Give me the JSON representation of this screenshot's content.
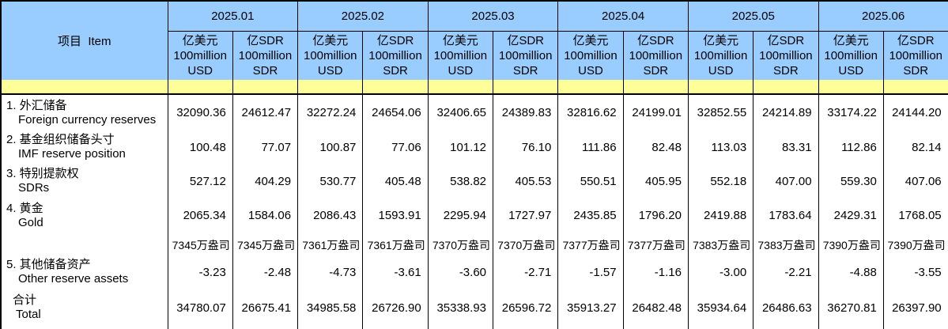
{
  "chart_data": {
    "type": "table",
    "item_header": "项目  Item",
    "months": [
      "2025.01",
      "2025.02",
      "2025.03",
      "2025.04",
      "2025.05",
      "2025.06"
    ],
    "unit_headers": {
      "usd": [
        "亿美元",
        "100million",
        "USD"
      ],
      "sdr": [
        "亿SDR",
        "100million",
        "SDR"
      ]
    },
    "rows": [
      {
        "label_cn": "1. 外汇储备",
        "label_en": "Foreign currency reserves",
        "values": [
          "32090.36",
          "24612.47",
          "32272.24",
          "24654.06",
          "32406.65",
          "24389.83",
          "32816.62",
          "24199.01",
          "32852.55",
          "24214.89",
          "33174.22",
          "24144.20"
        ]
      },
      {
        "label_cn": "2. 基金组织储备头寸",
        "label_en": "IMF reserve position",
        "values": [
          "100.48",
          "77.07",
          "100.87",
          "77.06",
          "101.12",
          "76.10",
          "111.86",
          "82.48",
          "113.03",
          "83.31",
          "112.86",
          "82.14"
        ]
      },
      {
        "label_cn": "3. 特别提款权",
        "label_en": "SDRs",
        "values": [
          "527.12",
          "404.29",
          "530.77",
          "405.48",
          "538.82",
          "405.53",
          "550.51",
          "405.95",
          "552.18",
          "407.00",
          "559.30",
          "407.06"
        ]
      },
      {
        "label_cn": "4. 黄金",
        "label_en": "Gold",
        "values": [
          "2065.34",
          "1584.06",
          "2086.43",
          "1593.91",
          "2295.94",
          "1727.97",
          "2435.85",
          "1796.20",
          "2419.88",
          "1783.64",
          "2429.31",
          "1768.05"
        ]
      },
      {
        "label_cn": "",
        "label_en": "",
        "values": [
          "7345万盎司",
          "7345万盎司",
          "7361万盎司",
          "7361万盎司",
          "7370万盎司",
          "7370万盎司",
          "7377万盎司",
          "7377万盎司",
          "7383万盎司",
          "7383万盎司",
          "7390万盎司",
          "7390万盎司"
        ]
      },
      {
        "label_cn": "5. 其他储备资产",
        "label_en": "Other reserve assets",
        "values": [
          "-3.23",
          "-2.48",
          "-4.73",
          "-3.61",
          "-3.60",
          "-2.71",
          "-1.57",
          "-1.16",
          "-3.00",
          "-2.21",
          "-4.88",
          "-3.55"
        ]
      },
      {
        "label_cn": "合计",
        "label_en": "Total",
        "values": [
          "34780.07",
          "26675.41",
          "34985.58",
          "26726.90",
          "35338.93",
          "26596.72",
          "35913.27",
          "26482.48",
          "35934.64",
          "26486.63",
          "36270.81",
          "26397.90"
        ]
      }
    ],
    "colors": {
      "header_bg": "#99CCFF",
      "band_bg": "#FFFF99",
      "border": "#000000",
      "text": "#000000"
    }
  }
}
